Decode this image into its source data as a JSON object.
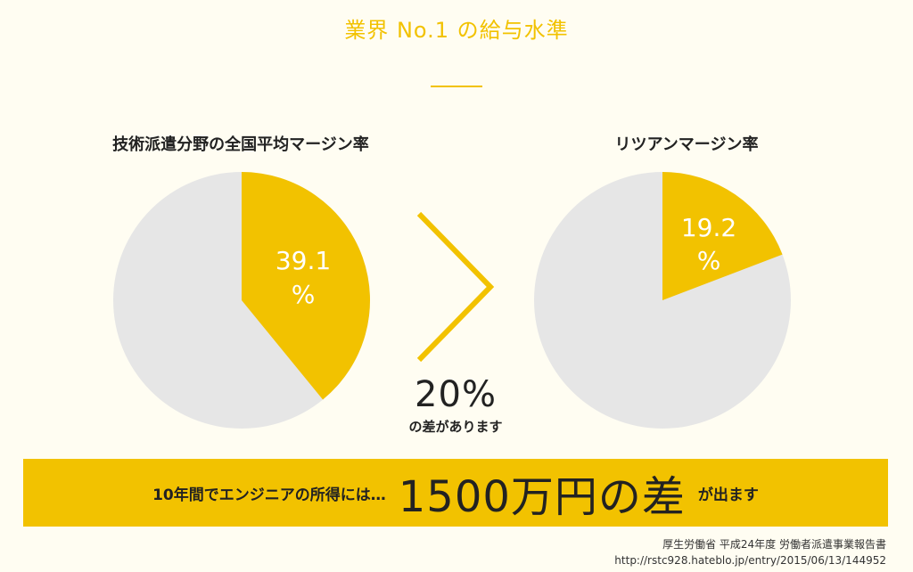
{
  "title": "業界 No.1 の給与水準",
  "colors": {
    "accent": "#f2c200",
    "pie_bg": "#e6e6e6",
    "slice_text": "#ffffff"
  },
  "chart_data": [
    {
      "type": "pie",
      "title": "技術派遣分野の全国平均マージン率",
      "slices": [
        {
          "label": "39.1%",
          "value": 39.1,
          "color": "#f2c200"
        },
        {
          "label": "",
          "value": 60.9,
          "color": "#e6e6e6"
        }
      ]
    },
    {
      "type": "pie",
      "title": "リツアンマージン率",
      "slices": [
        {
          "label": "19.2%",
          "value": 19.2,
          "color": "#f2c200"
        },
        {
          "label": "",
          "value": 80.8,
          "color": "#e6e6e6"
        }
      ]
    }
  ],
  "left_pie": {
    "value_text": "39.1",
    "unit": "%"
  },
  "right_pie": {
    "value_text": "19.2",
    "unit": "%"
  },
  "comparison": {
    "value": "20%",
    "note": "の差があります"
  },
  "banner": {
    "lead": "10年間でエンジニアの所得には…",
    "amount": "1500万円の差",
    "tail": "が出ます"
  },
  "source": {
    "line1": "厚生労働省 平成24年度 労働者派遣事業報告書",
    "line2": "http://rstc928.hateblo.jp/entry/2015/06/13/144952"
  }
}
